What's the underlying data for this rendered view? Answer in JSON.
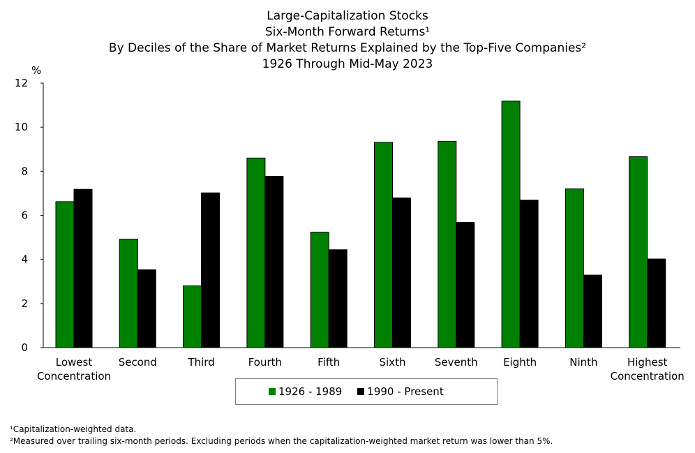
{
  "title_lines": [
    "Large-Capitalization Stocks",
    "Six-Month Forward Returns¹",
    "By Deciles of the Share of Market Returns Explained by the Top-Five Companies²",
    "1926 Through Mid-May 2023"
  ],
  "chart_data": {
    "type": "bar",
    "title": "Large-Capitalization Stocks Six-Month Forward Returns¹ By Deciles of the Share of Market Returns Explained by the Top-Five Companies² 1926 Through Mid-May 2023",
    "ylabel": "%",
    "ylim": [
      0,
      12
    ],
    "yticks": [
      "0",
      "2",
      "4",
      "6",
      "8",
      "10",
      "12"
    ],
    "categories": [
      [
        "Lowest",
        "Concentration"
      ],
      [
        "Second"
      ],
      [
        "Third"
      ],
      [
        "Fourth"
      ],
      [
        "Fifth"
      ],
      [
        "Sixth"
      ],
      [
        "Seventh"
      ],
      [
        "Eighth"
      ],
      [
        "Ninth"
      ],
      [
        "Highest",
        "Concentration"
      ]
    ],
    "series": [
      {
        "name": "1926 - 1989",
        "color": "#008000",
        "values": [
          6.62,
          4.92,
          2.8,
          8.6,
          5.24,
          9.31,
          9.36,
          11.18,
          7.2,
          8.66
        ]
      },
      {
        "name": "1990 - Present",
        "color": "#000000",
        "values": [
          7.18,
          3.53,
          7.02,
          7.77,
          4.44,
          6.79,
          5.68,
          6.69,
          3.29,
          4.02
        ]
      }
    ],
    "grid": false,
    "legend_position": "bottom-center"
  },
  "footnotes": [
    "¹Capitalization-weighted data.",
    "²Measured over trailing six-month periods. Excluding periods when the capitalization-weighted market return was lower than 5%."
  ]
}
